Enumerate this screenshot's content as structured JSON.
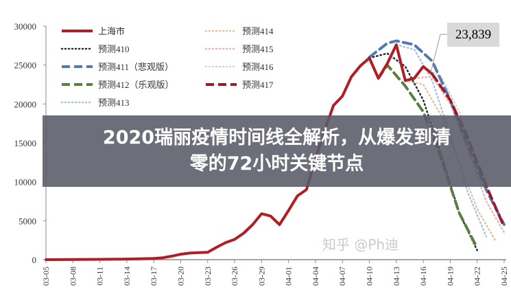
{
  "chart_data": {
    "type": "line",
    "title": "",
    "xlabel": "",
    "ylabel": "",
    "ylim": [
      0,
      30000
    ],
    "yticks": [
      "0",
      "5000",
      "10000",
      "15000",
      "20000",
      "25000",
      "30000"
    ],
    "xticks": [
      "03-05",
      "03-08",
      "03-11",
      "03-14",
      "03-17",
      "03-20",
      "03-23",
      "03-26",
      "03-29",
      "04-01",
      "04-04",
      "04-07",
      "04-10",
      "04-13",
      "04-16",
      "04-19",
      "04-22",
      "04-25"
    ],
    "xrange": [
      "03-05",
      "04-25"
    ],
    "grid": false,
    "legend_position": "top-left",
    "annotation": {
      "text": "23,839",
      "date": "04-17",
      "value": 23839
    },
    "series": [
      {
        "name": "上海市",
        "style": "solid",
        "color": "#b01e23",
        "points": [
          [
            "03-05",
            0
          ],
          [
            "03-08",
            20
          ],
          [
            "03-11",
            40
          ],
          [
            "03-14",
            80
          ],
          [
            "03-17",
            150
          ],
          [
            "03-18",
            250
          ],
          [
            "03-19",
            450
          ],
          [
            "03-20",
            700
          ],
          [
            "03-21",
            850
          ],
          [
            "03-22",
            900
          ],
          [
            "03-23",
            950
          ],
          [
            "03-24",
            1600
          ],
          [
            "03-25",
            2200
          ],
          [
            "03-26",
            2600
          ],
          [
            "03-27",
            3400
          ],
          [
            "03-28",
            4500
          ],
          [
            "03-29",
            5900
          ],
          [
            "03-30",
            5600
          ],
          [
            "03-31",
            4500
          ],
          [
            "04-01",
            6300
          ],
          [
            "04-02",
            8200
          ],
          [
            "04-03",
            9000
          ],
          [
            "04-04",
            13000
          ],
          [
            "04-05",
            16500
          ],
          [
            "04-06",
            19800
          ],
          [
            "04-07",
            21000
          ],
          [
            "04-08",
            23500
          ],
          [
            "04-09",
            24900
          ],
          [
            "04-10",
            25900
          ],
          [
            "04-11",
            23300
          ],
          [
            "04-12",
            25200
          ],
          [
            "04-13",
            27600
          ],
          [
            "04-14",
            23000
          ],
          [
            "04-15",
            23300
          ],
          [
            "04-16",
            24800
          ],
          [
            "04-17",
            23839
          ]
        ]
      },
      {
        "name": "预测410",
        "style": "dotted",
        "color": "#1f2a3a",
        "points": [
          [
            "04-10",
            25900
          ],
          [
            "04-12",
            26500
          ],
          [
            "04-14",
            24800
          ],
          [
            "04-16",
            20500
          ],
          [
            "04-18",
            13500
          ],
          [
            "04-20",
            6000
          ],
          [
            "04-22",
            1200
          ]
        ]
      },
      {
        "name": "预测411（悲观版）",
        "style": "dashed",
        "color": "#4f7bb0",
        "points": [
          [
            "04-10",
            26000
          ],
          [
            "04-12",
            27800
          ],
          [
            "04-13",
            28100
          ],
          [
            "04-15",
            27600
          ],
          [
            "04-17",
            25500
          ],
          [
            "04-19",
            20500
          ],
          [
            "04-21",
            14500
          ],
          [
            "04-23",
            9000
          ],
          [
            "04-25",
            4500
          ]
        ]
      },
      {
        "name": "预测412（乐观版）",
        "style": "dashed",
        "color": "#5a7f3f",
        "points": [
          [
            "04-11",
            23300
          ],
          [
            "04-12",
            25000
          ],
          [
            "04-14",
            22300
          ],
          [
            "04-16",
            19000
          ],
          [
            "04-18",
            13000
          ],
          [
            "04-20",
            6000
          ],
          [
            "04-22",
            1500
          ]
        ]
      },
      {
        "name": "预测413",
        "style": "dotted",
        "color": "#aac4dc",
        "points": [
          [
            "04-13",
            27600
          ],
          [
            "04-15",
            27000
          ],
          [
            "04-17",
            23000
          ],
          [
            "04-19",
            16000
          ],
          [
            "04-21",
            8500
          ],
          [
            "04-23",
            3000
          ]
        ]
      },
      {
        "name": "预测414",
        "style": "dotted",
        "color": "#e6c3a8",
        "points": [
          [
            "04-14",
            23000
          ],
          [
            "04-16",
            22500
          ],
          [
            "04-18",
            18500
          ],
          [
            "04-20",
            12500
          ],
          [
            "04-22",
            6500
          ],
          [
            "04-24",
            2500
          ]
        ]
      },
      {
        "name": "预测415",
        "style": "dotted",
        "color": "#e9b7b0",
        "points": [
          [
            "04-15",
            23300
          ],
          [
            "04-17",
            23500
          ],
          [
            "04-19",
            20000
          ],
          [
            "04-21",
            14000
          ],
          [
            "04-23",
            7500
          ],
          [
            "04-25",
            3500
          ]
        ]
      },
      {
        "name": "预测416",
        "style": "dotted",
        "color": "#d6d6d6",
        "points": [
          [
            "04-16",
            24800
          ],
          [
            "04-18",
            23500
          ],
          [
            "04-20",
            19000
          ],
          [
            "04-22",
            12500
          ],
          [
            "04-24",
            6500
          ]
        ]
      },
      {
        "name": "预测417",
        "style": "dashed",
        "color": "#a0182a",
        "points": [
          [
            "04-17",
            23839
          ],
          [
            "04-19",
            20500
          ],
          [
            "04-21",
            15500
          ],
          [
            "04-23",
            9500
          ],
          [
            "04-25",
            4200
          ]
        ]
      }
    ]
  },
  "banner": {
    "line1": "2020瑞丽疫情时间线全解析，从爆发到清",
    "line2": "零的72小时关键节点"
  },
  "watermark": "知乎 @Ph迪"
}
